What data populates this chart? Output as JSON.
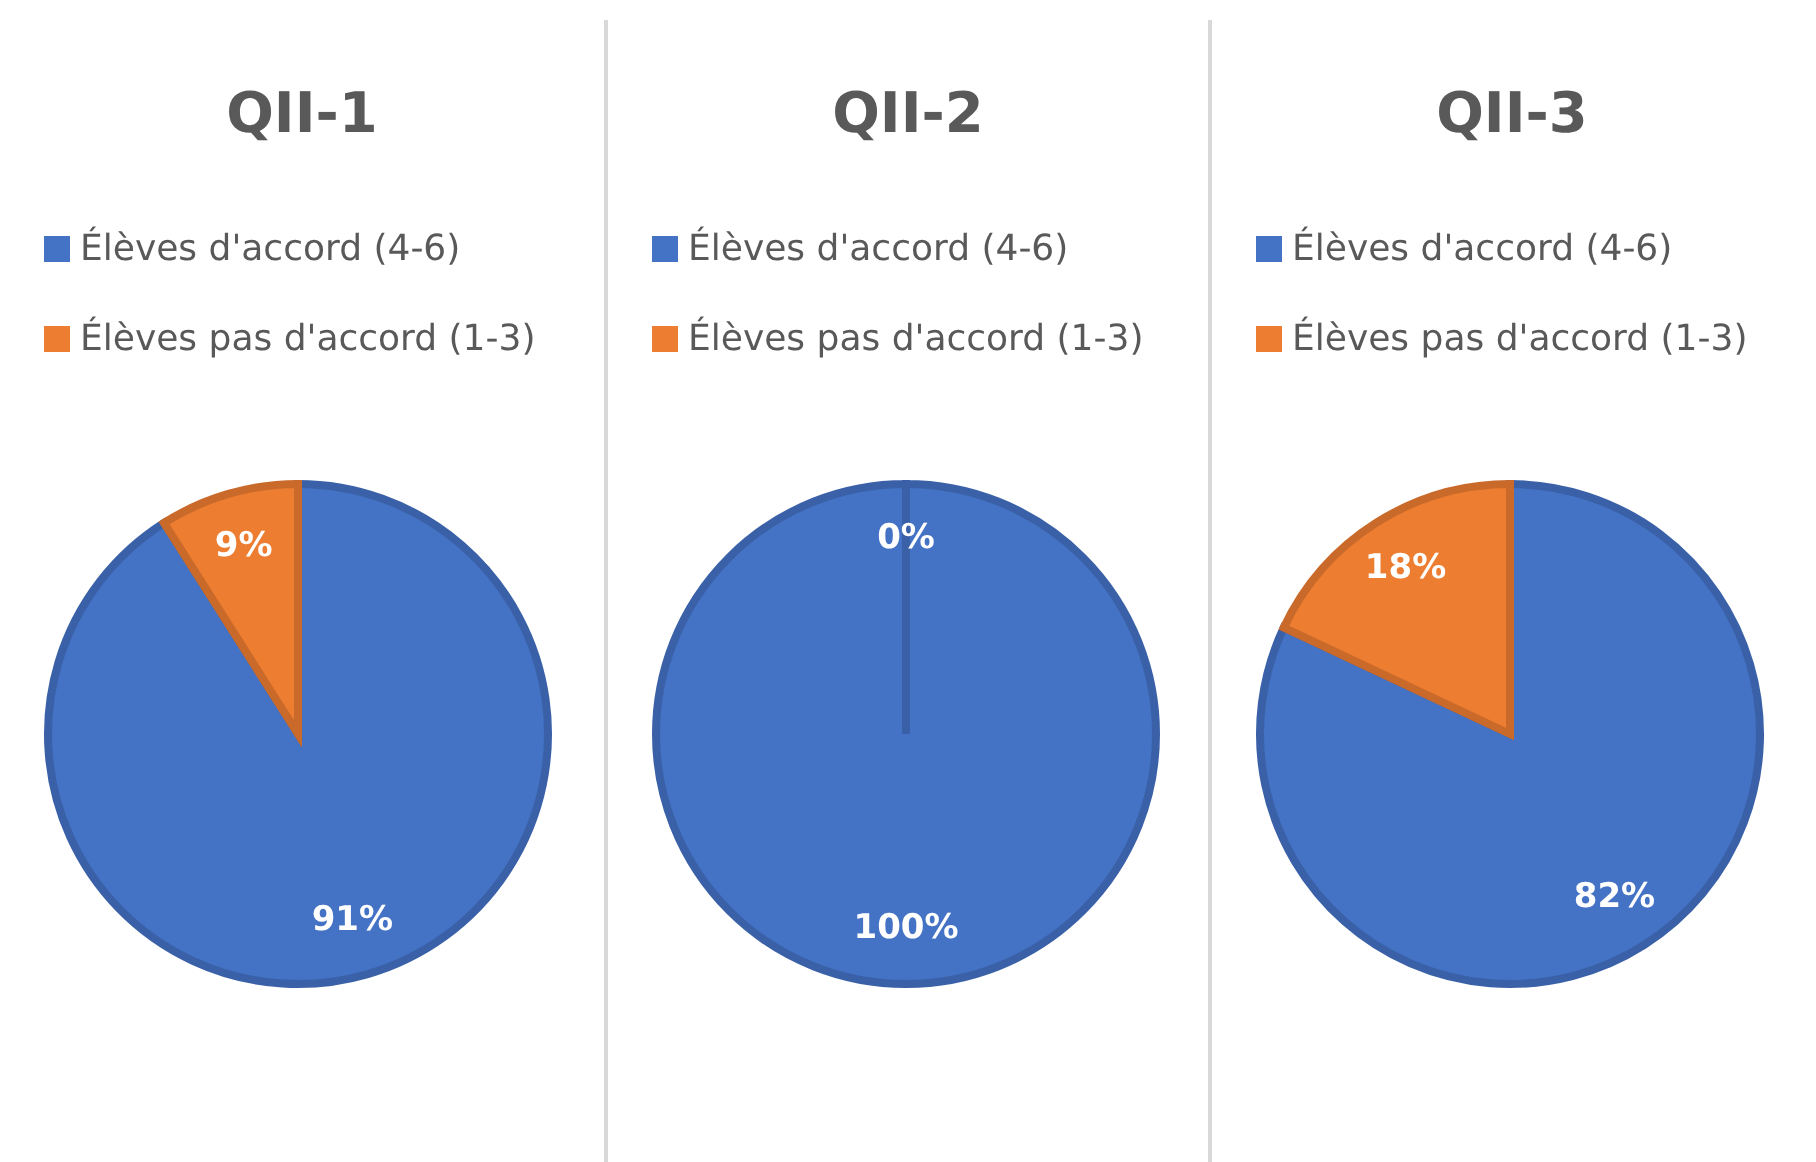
{
  "chart_data": [
    {
      "type": "pie",
      "title": "QII-1",
      "categories": [
        "Élèves d'accord (4-6)",
        "Élèves pas d'accord (1-3)"
      ],
      "values": [
        91,
        9
      ],
      "colors": [
        "#4472c4",
        "#ed7d31"
      ],
      "value_labels": [
        "91%",
        "9%"
      ],
      "legend": "top"
    },
    {
      "type": "pie",
      "title": "QII-2",
      "categories": [
        "Élèves d'accord (4-6)",
        "Élèves pas d'accord (1-3)"
      ],
      "values": [
        100,
        0
      ],
      "colors": [
        "#4472c4",
        "#ed7d31"
      ],
      "value_labels": [
        "100%",
        "0%"
      ],
      "legend": "top"
    },
    {
      "type": "pie",
      "title": "QII-3",
      "categories": [
        "Élèves d'accord (4-6)",
        "Élèves pas d'accord (1-3)"
      ],
      "values": [
        82,
        18
      ],
      "colors": [
        "#4472c4",
        "#ed7d31"
      ],
      "value_labels": [
        "82%",
        "18%"
      ],
      "legend": "top"
    }
  ]
}
